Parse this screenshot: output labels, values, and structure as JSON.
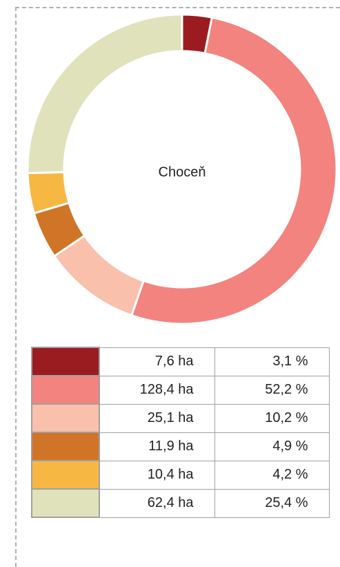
{
  "chart_data": {
    "type": "donut",
    "center_label": "Choceň",
    "colors": [
      "#9b1c20",
      "#f2837f",
      "#f9c0ab",
      "#d07428",
      "#f6b843",
      "#e0e2bc"
    ],
    "values": [
      3.1,
      52.2,
      10.2,
      4.9,
      4.2,
      25.4
    ],
    "value_labels": [
      "3,1 %",
      "52,2 %",
      "10,2 %",
      "4,9 %",
      "4,2 %",
      "25,4 %"
    ],
    "areas": [
      7.6,
      128.4,
      25.1,
      11.9,
      10.4,
      62.4
    ],
    "area_labels": [
      "7,6 ha",
      "128,4 ha",
      "25,1 ha",
      "11,9 ha",
      "10,4 ha",
      "62,4 ha"
    ]
  }
}
